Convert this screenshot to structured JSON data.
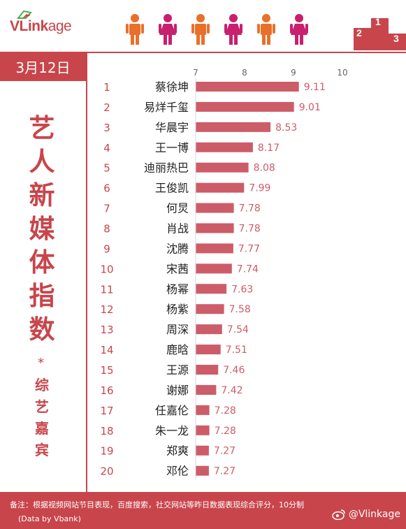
{
  "header": {
    "logo_main": "VLink",
    "logo_sub": "age",
    "figure_colors": [
      "#e8702a",
      "#c8206e",
      "#e8702a",
      "#c8206e",
      "#e8702a",
      "#c8206e"
    ],
    "podium_color": "#c8454b",
    "podium_numbers": [
      "2",
      "1",
      "3"
    ]
  },
  "date": "3月12日",
  "title_chars": [
    "艺",
    "人",
    "新",
    "媒",
    "体",
    "指",
    "数"
  ],
  "title_star": "*",
  "subtitle_chars": [
    "综",
    "艺",
    "嘉",
    "宾"
  ],
  "chart_data": {
    "type": "bar",
    "orientation": "horizontal",
    "x_ticks": [
      "7",
      "8",
      "9",
      "10"
    ],
    "xlim": [
      7,
      10
    ],
    "bar_color": "#cd5c69",
    "label_color": "#cd5c69",
    "rank_color": "#c8454b",
    "rows": [
      {
        "rank": "1",
        "name": "蔡徐坤",
        "value": 9.11,
        "label": "9.11"
      },
      {
        "rank": "2",
        "name": "易烊千玺",
        "value": 9.01,
        "label": "9.01"
      },
      {
        "rank": "3",
        "name": "华晨宇",
        "value": 8.53,
        "label": "8.53"
      },
      {
        "rank": "4",
        "name": "王一博",
        "value": 8.17,
        "label": "8.17"
      },
      {
        "rank": "5",
        "name": "迪丽热巴",
        "value": 8.08,
        "label": "8.08"
      },
      {
        "rank": "6",
        "name": "王俊凯",
        "value": 7.99,
        "label": "7.99"
      },
      {
        "rank": "7",
        "name": "何炅",
        "value": 7.78,
        "label": "7.78"
      },
      {
        "rank": "8",
        "name": "肖战",
        "value": 7.78,
        "label": "7.78"
      },
      {
        "rank": "9",
        "name": "沈腾",
        "value": 7.77,
        "label": "7.77"
      },
      {
        "rank": "10",
        "name": "宋茜",
        "value": 7.74,
        "label": "7.74"
      },
      {
        "rank": "11",
        "name": "杨幂",
        "value": 7.63,
        "label": "7.63"
      },
      {
        "rank": "12",
        "name": "杨紫",
        "value": 7.58,
        "label": "7.58"
      },
      {
        "rank": "13",
        "name": "周深",
        "value": 7.54,
        "label": "7.54"
      },
      {
        "rank": "14",
        "name": "鹿晗",
        "value": 7.51,
        "label": "7.51"
      },
      {
        "rank": "15",
        "name": "王源",
        "value": 7.46,
        "label": "7.46"
      },
      {
        "rank": "16",
        "name": "谢娜",
        "value": 7.42,
        "label": "7.42"
      },
      {
        "rank": "17",
        "name": "任嘉伦",
        "value": 7.28,
        "label": "7.28"
      },
      {
        "rank": "18",
        "name": "朱一龙",
        "value": 7.28,
        "label": "7.28"
      },
      {
        "rank": "19",
        "name": "郑爽",
        "value": 7.27,
        "label": "7.27"
      },
      {
        "rank": "20",
        "name": "邓伦",
        "value": 7.27,
        "label": "7.27"
      }
    ]
  },
  "footer": {
    "note": "备注：根据视频网站节目表现，百度搜索，社交网站等昨日数据表现综合评分，10分制",
    "credit": "(Data by Vbank)",
    "weibo": "@Vlinkage"
  }
}
